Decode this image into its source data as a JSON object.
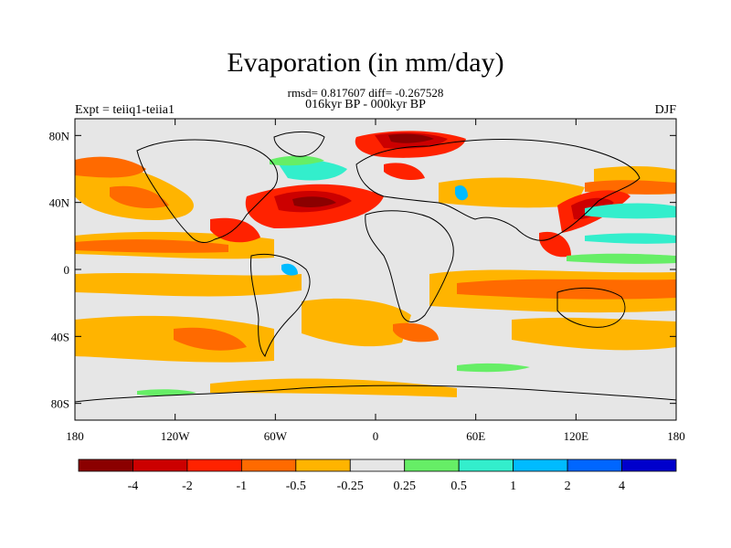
{
  "header": {
    "title": "Evaporation (in mm/day)",
    "stats": "rmsd= 0.817607 diff= -0.267528",
    "period": "016kyr BP - 000kyr BP",
    "experiment": "Expt = teiiq1-teiia1",
    "season": "DJF"
  },
  "map": {
    "projection": "cylindrical-equidistant",
    "lon_range": [
      -180,
      180
    ],
    "lat_range": [
      -90,
      90
    ],
    "lat_ticks": [
      {
        "value": 80,
        "label": "80N"
      },
      {
        "value": 40,
        "label": "40N"
      },
      {
        "value": 0,
        "label": "0"
      },
      {
        "value": -40,
        "label": "40S"
      },
      {
        "value": -80,
        "label": "80S"
      }
    ],
    "lon_ticks": [
      {
        "value": -180,
        "label": "180"
      },
      {
        "value": -120,
        "label": "120W"
      },
      {
        "value": -60,
        "label": "60W"
      },
      {
        "value": 0,
        "label": "0"
      },
      {
        "value": 60,
        "label": "60E"
      },
      {
        "value": 120,
        "label": "120E"
      },
      {
        "value": 180,
        "label": "180"
      }
    ]
  },
  "colorbar": {
    "colors": [
      "#8b0000",
      "#cc0000",
      "#ff2200",
      "#ff6a00",
      "#ffb400",
      "#e6e6e6",
      "#66ee66",
      "#33eecc",
      "#00bbff",
      "#0066ff",
      "#0000cc"
    ],
    "tick_labels": [
      "-4",
      "-2",
      "-1",
      "-0.5",
      "-0.25",
      "0.25",
      "0.5",
      "1",
      "2",
      "4"
    ]
  }
}
